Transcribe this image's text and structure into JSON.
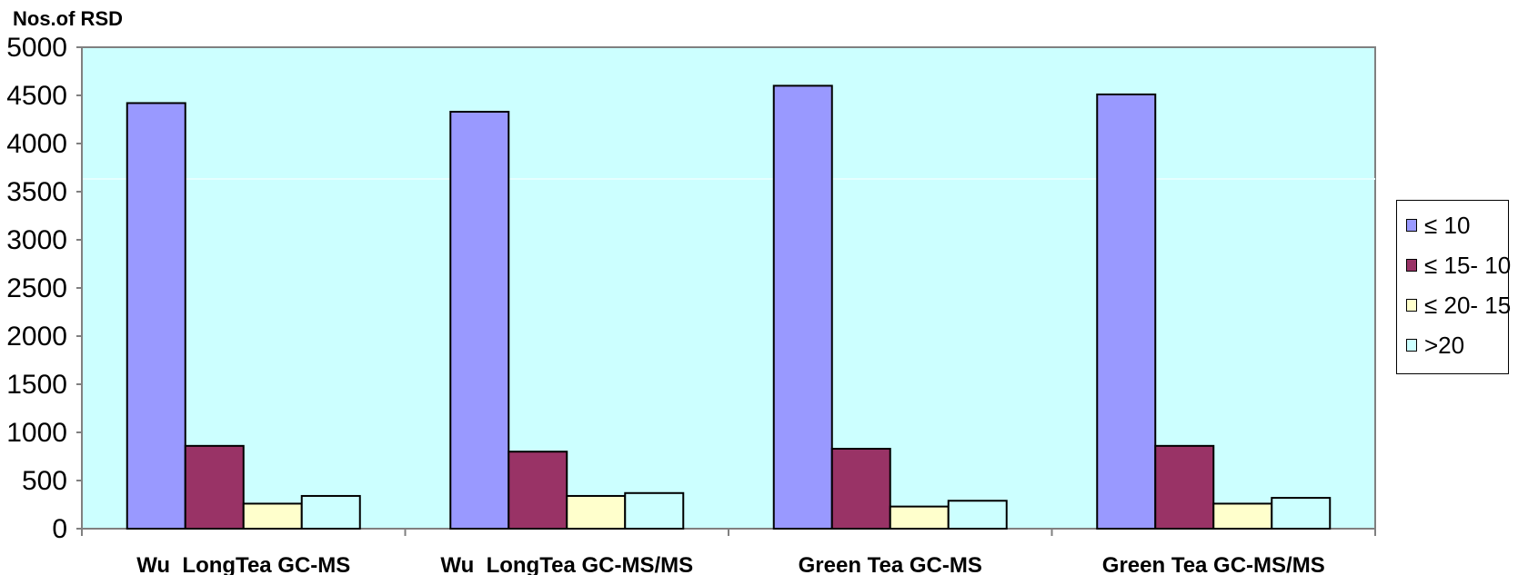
{
  "chart_data": {
    "type": "bar",
    "title": "",
    "ylabel": "Nos.of RSD",
    "xlabel": "",
    "ylim": [
      0,
      5000
    ],
    "yticks": [
      0,
      500,
      1000,
      1500,
      2000,
      2500,
      3000,
      3500,
      4000,
      4500,
      5000
    ],
    "categories": [
      "Wu  LongTea GC-MS",
      "Wu  LongTea GC-MS/MS",
      "Green Tea GC-MS",
      "Green Tea GC-MS/MS"
    ],
    "series": [
      {
        "name": "≤ 10",
        "color": "#9999ff",
        "values": [
          4420,
          4330,
          4600,
          4510
        ]
      },
      {
        "name": "≤ 15- 10",
        "color": "#993366",
        "values": [
          860,
          800,
          830,
          860
        ]
      },
      {
        "name": "≤ 20- 15",
        "color": "#ffffcc",
        "values": [
          260,
          340,
          230,
          260
        ]
      },
      {
        "name": ">20",
        "color": "#ccffff",
        "values": [
          340,
          370,
          290,
          320
        ]
      }
    ],
    "legend": "right",
    "grid": false,
    "plot_background": "#ccffff"
  }
}
